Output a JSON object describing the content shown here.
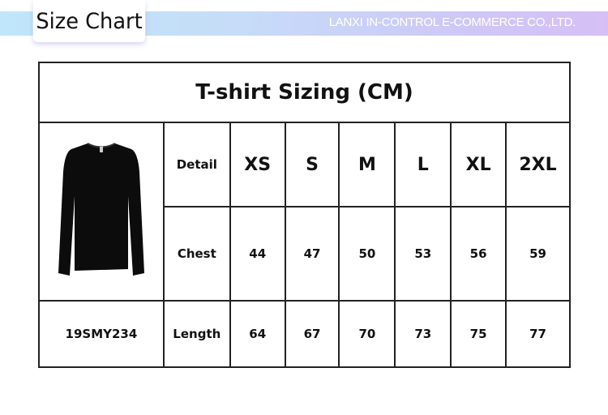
{
  "header": {
    "label": "Size Chart",
    "company": "LANXI IN-CONTROL E-COMMERCE CO.,LTD."
  },
  "table": {
    "title": "T-shirt  Sizing (CM)",
    "product_code": "19SMY234",
    "columns": [
      "Detail",
      "XS",
      "S",
      "M",
      "L",
      "XL",
      "2XL"
    ],
    "rows": [
      {
        "label": "Chest",
        "values": [
          "44",
          "47",
          "50",
          "53",
          "56",
          "59"
        ]
      },
      {
        "label": "Length",
        "values": [
          "64",
          "67",
          "70",
          "73",
          "75",
          "77"
        ]
      }
    ]
  }
}
